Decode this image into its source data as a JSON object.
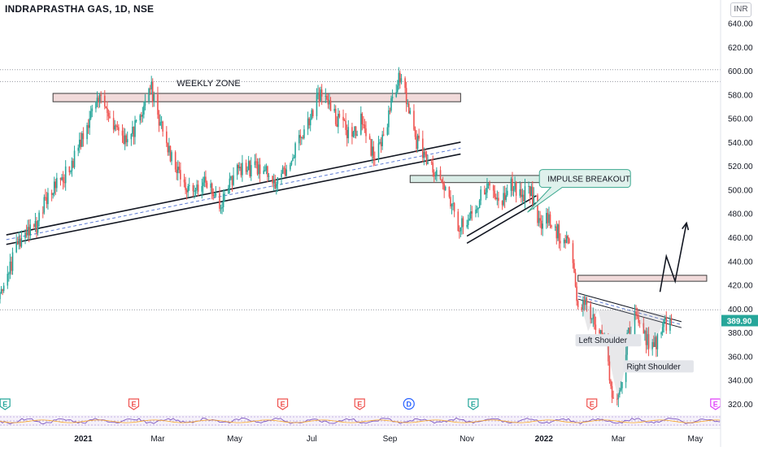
{
  "header": {
    "symbol_title": "INDRAPRASTHA GAS, 1D, NSE",
    "currency": "INR"
  },
  "colors": {
    "up": "#26a69a",
    "down": "#ef5350",
    "zone_fill": "#f1dada",
    "zone_stroke": "#3c3c3c",
    "box_fill": "#d9ece6",
    "price_label_bg": "#26a69a",
    "callout_fill": "#dff1ec",
    "callout_stroke": "#3aa88f"
  },
  "chart_data": {
    "type": "candlestick",
    "ylim": [
      311,
      650
    ],
    "y_ticks": [
      320,
      340,
      360,
      380,
      400,
      420,
      440,
      460,
      480,
      500,
      520,
      540,
      560,
      580,
      600,
      620,
      640
    ],
    "y_tick_labels": [
      "320.00",
      "340.00",
      "360.00",
      "380.00",
      "400.00",
      "420.00",
      "440.00",
      "460.00",
      "480.00",
      "500.00",
      "520.00",
      "540.00",
      "560.00",
      "580.00",
      "600.00",
      "620.00",
      "640.00"
    ],
    "x_range": [
      "2020-10-27",
      "2022-05-21"
    ],
    "x_ticks": [
      {
        "date": "2021-01-01",
        "label": "2021"
      },
      {
        "date": "2021-03-01",
        "label": "Mar"
      },
      {
        "date": "2021-05-01",
        "label": "May"
      },
      {
        "date": "2021-07-01",
        "label": "Jul"
      },
      {
        "date": "2021-09-01",
        "label": "Sep"
      },
      {
        "date": "2021-11-01",
        "label": "Nov"
      },
      {
        "date": "2022-01-01",
        "label": "2022"
      },
      {
        "date": "2022-03-01",
        "label": "Mar"
      },
      {
        "date": "2022-05-01",
        "label": "May"
      }
    ],
    "last_price": 389.9,
    "last_price_label": "389.90",
    "reference_levels": [
      601,
      591,
      399
    ],
    "price_path": [
      [
        "2020-10-27",
        408
      ],
      [
        "2020-11-10",
        455
      ],
      [
        "2020-11-25",
        470
      ],
      [
        "2020-12-05",
        500
      ],
      [
        "2020-12-20",
        515
      ],
      [
        "2021-01-01",
        545
      ],
      [
        "2021-01-12",
        578
      ],
      [
        "2021-01-25",
        555
      ],
      [
        "2021-02-05",
        540
      ],
      [
        "2021-02-15",
        560
      ],
      [
        "2021-02-23",
        590
      ],
      [
        "2021-03-01",
        560
      ],
      [
        "2021-03-12",
        528
      ],
      [
        "2021-03-25",
        500
      ],
      [
        "2021-04-10",
        505
      ],
      [
        "2021-04-20",
        485
      ],
      [
        "2021-05-01",
        515
      ],
      [
        "2021-05-20",
        520
      ],
      [
        "2021-06-05",
        505
      ],
      [
        "2021-06-20",
        540
      ],
      [
        "2021-07-01",
        565
      ],
      [
        "2021-07-08",
        580
      ],
      [
        "2021-07-20",
        560
      ],
      [
        "2021-08-01",
        545
      ],
      [
        "2021-08-10",
        560
      ],
      [
        "2021-08-20",
        525
      ],
      [
        "2021-08-28",
        545
      ],
      [
        "2021-09-05",
        585
      ],
      [
        "2021-09-10",
        600
      ],
      [
        "2021-09-20",
        545
      ],
      [
        "2021-10-01",
        525
      ],
      [
        "2021-10-15",
        505
      ],
      [
        "2021-10-25",
        470
      ],
      [
        "2021-11-01",
        468
      ],
      [
        "2021-11-15",
        502
      ],
      [
        "2021-11-28",
        490
      ],
      [
        "2021-12-05",
        505
      ],
      [
        "2021-12-15",
        495
      ],
      [
        "2021-12-22",
        500
      ],
      [
        "2021-12-28",
        470
      ],
      [
        "2022-01-05",
        475
      ],
      [
        "2022-01-15",
        460
      ],
      [
        "2022-01-22",
        450
      ],
      [
        "2022-01-28",
        405
      ],
      [
        "2022-02-05",
        400
      ],
      [
        "2022-02-12",
        385
      ],
      [
        "2022-02-18",
        375
      ],
      [
        "2022-02-24",
        330
      ],
      [
        "2022-03-02",
        325
      ],
      [
        "2022-03-08",
        375
      ],
      [
        "2022-03-15",
        398
      ],
      [
        "2022-03-22",
        375
      ],
      [
        "2022-03-28",
        365
      ],
      [
        "2022-04-05",
        385
      ],
      [
        "2022-04-12",
        390
      ]
    ],
    "zones": [
      {
        "name": "weekly-zone",
        "x": [
          "2020-12-08",
          "2021-10-27"
        ],
        "y": [
          574,
          581
        ]
      },
      {
        "name": "breakout-zone",
        "x": [
          "2021-09-17",
          "2021-12-30"
        ],
        "y": [
          506,
          512
        ]
      },
      {
        "name": "target-zone",
        "x": [
          "2022-01-28",
          "2022-05-10"
        ],
        "y": [
          423,
          428
        ]
      }
    ],
    "trendlines": [
      {
        "name": "lower-channel-line",
        "points": [
          [
            "2020-11-01",
            454
          ],
          [
            "2021-10-27",
            530
          ]
        ]
      },
      {
        "name": "upper-channel-line",
        "points": [
          [
            "2020-11-01",
            462
          ],
          [
            "2021-10-27",
            540
          ]
        ]
      },
      {
        "name": "rising-wedge-lower",
        "points": [
          [
            "2021-11-01",
            455
          ],
          [
            "2021-12-26",
            489
          ]
        ]
      },
      {
        "name": "rising-wedge-upper",
        "points": [
          [
            "2021-11-01",
            461
          ],
          [
            "2021-12-26",
            495
          ]
        ]
      },
      {
        "name": "neckline-upper",
        "points": [
          [
            "2022-01-28",
            413
          ],
          [
            "2022-04-20",
            389
          ]
        ]
      },
      {
        "name": "neckline-lower",
        "points": [
          [
            "2022-01-28",
            408
          ],
          [
            "2022-04-20",
            384
          ]
        ]
      }
    ],
    "projection_path": [
      [
        "2022-04-03",
        414
      ],
      [
        "2022-04-08",
        444
      ],
      [
        "2022-04-15",
        423
      ],
      [
        "2022-04-24",
        472
      ]
    ],
    "annotations": {
      "weekly_zone": "WEEKLY ZONE",
      "impulse_breakout": "IMPULSE BREAKOUT",
      "left_shoulder": "Left Shoulder",
      "right_shoulder": "Right Shoulder"
    },
    "event_markers": [
      {
        "date": "2020-10-31",
        "label": "E",
        "color": "#26a69a",
        "shape": "flag"
      },
      {
        "date": "2021-02-10",
        "label": "E",
        "color": "#ef5350",
        "shape": "flag"
      },
      {
        "date": "2021-06-08",
        "label": "E",
        "color": "#ef5350",
        "shape": "flag"
      },
      {
        "date": "2021-08-08",
        "label": "E",
        "color": "#ef5350",
        "shape": "flag"
      },
      {
        "date": "2021-09-16",
        "label": "D",
        "color": "#2962ff",
        "shape": "circle"
      },
      {
        "date": "2021-11-06",
        "label": "E",
        "color": "#26a69a",
        "shape": "flag"
      },
      {
        "date": "2022-02-08",
        "label": "E",
        "color": "#ef5350",
        "shape": "flag"
      },
      {
        "date": "2022-05-17",
        "label": "E",
        "color": "#e040fb",
        "shape": "flag"
      }
    ]
  }
}
